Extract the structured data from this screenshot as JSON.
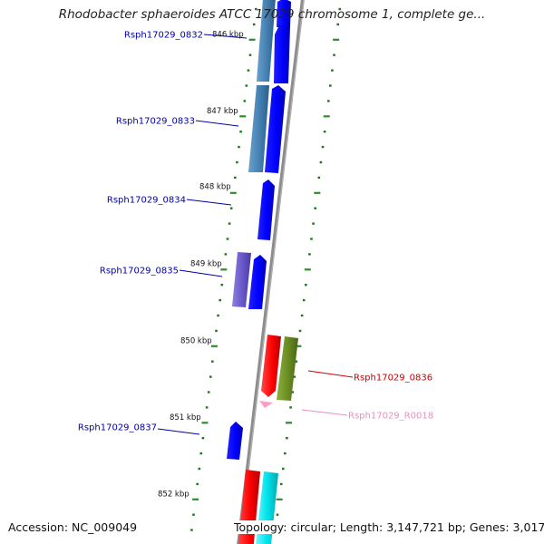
{
  "title": "Rhodobacter sphaeroides ATCC 17029 chromosome 1, complete ge...",
  "footer": {
    "accession": "Accession: NC_009049",
    "summary": "Topology: circular; Length: 3,147,721 bp; Genes: 3,017"
  },
  "colors": {
    "backbone": "#8c8c8c",
    "ticks_major": "#2e8b2e",
    "ticks_minor": "#1f7a1f",
    "label_forward": "#0000aa",
    "label_reverse": "#cc0000",
    "label_rna": "#e88fc0",
    "cds_blue": "#0000ff",
    "cds_steel": "#4682b4",
    "cds_purple": "#6a5acd",
    "cds_red": "#ff0000",
    "cds_olive": "#6b8e23",
    "cds_cyan": "#00e5ee",
    "rna_pink": "#ff9cc8"
  },
  "scale": {
    "ticks": [
      {
        "label": "846 kbp",
        "kbp": 846
      },
      {
        "label": "847 kbp",
        "kbp": 847
      },
      {
        "label": "848 kbp",
        "kbp": 848
      },
      {
        "label": "849 kbp",
        "kbp": 849
      },
      {
        "label": "850 kbp",
        "kbp": 850
      },
      {
        "label": "851 kbp",
        "kbp": 851
      },
      {
        "label": "852 kbp",
        "kbp": 852
      }
    ]
  },
  "genes": [
    {
      "label": "Rsph17029_0832",
      "strand": "forward",
      "color": "blue",
      "icon": "cds-arrow"
    },
    {
      "label": "Rsph17029_0833",
      "strand": "forward",
      "color": "blue",
      "icon": "cds-arrow"
    },
    {
      "label": "Rsph17029_0834",
      "strand": "forward",
      "color": "blue",
      "icon": "cds-arrow"
    },
    {
      "label": "Rsph17029_0835",
      "strand": "forward",
      "color": "blue",
      "icon": "cds-arrow"
    },
    {
      "label": "Rsph17029_0836",
      "strand": "reverse",
      "color": "red",
      "icon": "cds-arrow"
    },
    {
      "label": "Rsph17029_R0018",
      "strand": "reverse",
      "color": "pink",
      "icon": "rna-arrow"
    },
    {
      "label": "Rsph17029_0837",
      "strand": "forward",
      "color": "blue",
      "icon": "cds-arrow"
    }
  ]
}
